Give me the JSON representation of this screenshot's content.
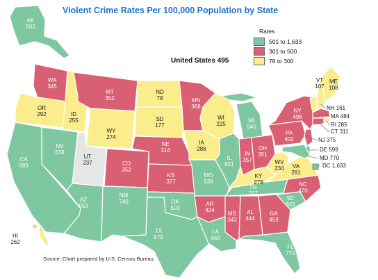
{
  "title": "Violent Crime Rates Per 100,000 Population by State",
  "us_label": "United States",
  "us_value": "495",
  "source": "Source: Chart prepared by U.S. Census Bureau.",
  "legend": {
    "title": "Rates",
    "items": [
      {
        "label": "501 to 1,633",
        "color": "#7fc7a0"
      },
      {
        "label": "301 to 500",
        "color": "#d95f73"
      },
      {
        "label": "78 to 300",
        "color": "#fbed8c"
      }
    ]
  },
  "colors": {
    "high": "#7fc7a0",
    "mid": "#d95f73",
    "low": "#fbed8c",
    "none": "#e6e6e6",
    "border": "#ffffff",
    "callout_line": "#555555"
  },
  "states": {
    "AK": {
      "abbr": "AK",
      "value": "563"
    },
    "HI": {
      "abbr": "HI",
      "value": "262"
    },
    "WA": {
      "abbr": "WA",
      "value": "345"
    },
    "OR": {
      "abbr": "OR",
      "value": "292"
    },
    "CA": {
      "abbr": "CA",
      "value": "593"
    },
    "NV": {
      "abbr": "NV",
      "value": "638"
    },
    "ID": {
      "abbr": "ID",
      "value": "255"
    },
    "MT": {
      "abbr": "MT",
      "value": "352"
    },
    "WY": {
      "abbr": "WY",
      "value": "274"
    },
    "UT": {
      "abbr": "UT",
      "value": "237"
    },
    "AZ": {
      "abbr": "AZ",
      "value": "553"
    },
    "CO": {
      "abbr": "CO",
      "value": "352"
    },
    "NM": {
      "abbr": "NM",
      "value": "740"
    },
    "ND": {
      "abbr": "ND",
      "value": "78"
    },
    "SD": {
      "abbr": "SD",
      "value": "177"
    },
    "NE": {
      "abbr": "NE",
      "value": "314"
    },
    "KS": {
      "abbr": "KS",
      "value": "377"
    },
    "OK": {
      "abbr": "OK",
      "value": "503"
    },
    "TX": {
      "abbr": "TX",
      "value": "579"
    },
    "MN": {
      "abbr": "MN",
      "value": "368"
    },
    "IA": {
      "abbr": "IA",
      "value": "286"
    },
    "MO": {
      "abbr": "MO",
      "value": "539"
    },
    "AR": {
      "abbr": "AR",
      "value": "424"
    },
    "LA": {
      "abbr": "LA",
      "value": "662"
    },
    "WI": {
      "abbr": "WI",
      "value": "225"
    },
    "IL": {
      "abbr": "IL",
      "value": "621"
    },
    "MI": {
      "abbr": "MI",
      "value": "540"
    },
    "IN": {
      "abbr": "IN",
      "value": "357"
    },
    "OH": {
      "abbr": "OH",
      "value": "351"
    },
    "KY": {
      "abbr": "KY",
      "value": "279"
    },
    "TN": {
      "abbr": "TN",
      "value": "717"
    },
    "MS": {
      "abbr": "MS",
      "value": "343"
    },
    "AL": {
      "abbr": "AL",
      "value": "444"
    },
    "GA": {
      "abbr": "GA",
      "value": "459"
    },
    "FL": {
      "abbr": "FL",
      "value": "770"
    },
    "SC": {
      "abbr": "SC",
      "value": "822"
    },
    "NC": {
      "abbr": "NC",
      "value": "470"
    },
    "VA": {
      "abbr": "VA",
      "value": "291"
    },
    "WV": {
      "abbr": "WV",
      "value": "234"
    },
    "PA": {
      "abbr": "PA",
      "value": "402"
    },
    "NY": {
      "abbr": "NY",
      "value": "496"
    },
    "VT": {
      "abbr": "VT",
      "value": "107"
    },
    "ME": {
      "abbr": "ME",
      "value": "108"
    },
    "NH": {
      "abbr": "NH",
      "value": "161"
    },
    "MA": {
      "abbr": "MA",
      "value": "484"
    },
    "RI": {
      "abbr": "RI",
      "value": "285"
    },
    "CT": {
      "abbr": "CT",
      "value": "311"
    },
    "NJ": {
      "abbr": "NJ",
      "value": "375"
    },
    "DE": {
      "abbr": "DE",
      "value": "599"
    },
    "MD": {
      "abbr": "MD",
      "value": "770"
    },
    "DC": {
      "abbr": "DC",
      "value": "1,633"
    }
  }
}
